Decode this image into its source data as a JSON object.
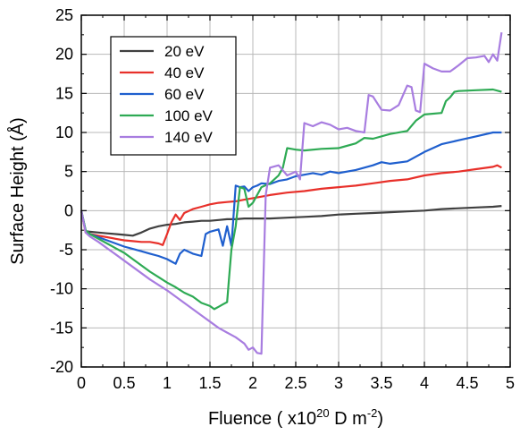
{
  "chart_data": {
    "type": "line",
    "xlabel": {
      "pre": "Fluence ( x10",
      "sup1": "20",
      "mid": " D m",
      "sup2": "-2",
      "post": ")"
    },
    "ylabel": "Surface Height (Å)",
    "xlim": [
      0,
      5
    ],
    "ylim": [
      -20,
      25
    ],
    "xticks": [
      0,
      0.5,
      1,
      1.5,
      2,
      2.5,
      3,
      3.5,
      4,
      4.5,
      5
    ],
    "xtick_labels": [
      "0",
      "0.5",
      "1",
      "1.5",
      "2",
      "2.5",
      "3",
      "3.5",
      "4",
      "4.5",
      "5"
    ],
    "yticks": [
      -20,
      -15,
      -10,
      -5,
      0,
      5,
      10,
      15,
      20,
      25
    ],
    "ytick_labels": [
      "-20",
      "-15",
      "-10",
      "-5",
      "0",
      "5",
      "10",
      "15",
      "20",
      "25"
    ],
    "grid": true,
    "legend_position": "top-left",
    "series": [
      {
        "name": "20 eV",
        "color": "#404040",
        "x": [
          0,
          0.05,
          0.1,
          0.2,
          0.3,
          0.4,
          0.5,
          0.6,
          0.7,
          0.8,
          0.9,
          1.0,
          1.1,
          1.2,
          1.3,
          1.4,
          1.5,
          1.6,
          1.7,
          1.8,
          1.9,
          2.0,
          2.2,
          2.4,
          2.6,
          2.8,
          3.0,
          3.2,
          3.4,
          3.6,
          3.8,
          4.0,
          4.2,
          4.4,
          4.6,
          4.8,
          4.9
        ],
        "y": [
          0,
          -2.6,
          -2.7,
          -2.8,
          -2.9,
          -3.0,
          -3.1,
          -3.2,
          -2.8,
          -2.3,
          -2.0,
          -1.8,
          -1.7,
          -1.5,
          -1.4,
          -1.3,
          -1.3,
          -1.2,
          -1.1,
          -1.1,
          -1.0,
          -1.0,
          -1.0,
          -0.9,
          -0.8,
          -0.7,
          -0.5,
          -0.4,
          -0.3,
          -0.2,
          -0.1,
          0.0,
          0.2,
          0.3,
          0.4,
          0.5,
          0.6
        ]
      },
      {
        "name": "40 eV",
        "color": "#e8302a",
        "x": [
          0,
          0.05,
          0.1,
          0.2,
          0.3,
          0.4,
          0.5,
          0.6,
          0.7,
          0.8,
          0.9,
          0.95,
          1.0,
          1.05,
          1.1,
          1.15,
          1.2,
          1.3,
          1.4,
          1.5,
          1.6,
          1.7,
          1.8,
          1.9,
          2.0,
          2.2,
          2.4,
          2.6,
          2.8,
          3.0,
          3.2,
          3.4,
          3.6,
          3.8,
          4.0,
          4.2,
          4.4,
          4.6,
          4.8,
          4.85,
          4.9
        ],
        "y": [
          0,
          -2.8,
          -3.0,
          -3.2,
          -3.4,
          -3.6,
          -3.8,
          -3.9,
          -4.0,
          -4.0,
          -4.2,
          -4.4,
          -3.0,
          -1.5,
          -0.5,
          -1.2,
          -0.3,
          0.2,
          0.5,
          0.8,
          1.0,
          1.1,
          1.2,
          1.4,
          1.6,
          2.0,
          2.3,
          2.5,
          2.8,
          3.0,
          3.2,
          3.5,
          3.8,
          4.0,
          4.5,
          4.8,
          5.0,
          5.3,
          5.6,
          5.8,
          5.5
        ]
      },
      {
        "name": "60 eV",
        "color": "#1f5fce",
        "x": [
          0,
          0.05,
          0.1,
          0.2,
          0.3,
          0.4,
          0.5,
          0.6,
          0.7,
          0.8,
          0.9,
          1.0,
          1.05,
          1.1,
          1.15,
          1.2,
          1.3,
          1.4,
          1.45,
          1.5,
          1.6,
          1.65,
          1.7,
          1.75,
          1.8,
          1.85,
          1.9,
          1.95,
          2.0,
          2.05,
          2.1,
          2.2,
          2.3,
          2.4,
          2.5,
          2.6,
          2.7,
          2.8,
          2.9,
          3.0,
          3.2,
          3.4,
          3.5,
          3.6,
          3.8,
          4.0,
          4.2,
          4.4,
          4.6,
          4.8,
          4.9
        ],
        "y": [
          0,
          -2.5,
          -3.0,
          -3.4,
          -3.8,
          -4.2,
          -4.6,
          -4.9,
          -5.2,
          -5.5,
          -5.8,
          -6.2,
          -6.5,
          -6.8,
          -5.5,
          -5.0,
          -5.5,
          -5.8,
          -3.0,
          -2.7,
          -2.4,
          -4.5,
          -2.0,
          -4.5,
          3.2,
          3.0,
          3.1,
          2.5,
          3.0,
          3.2,
          3.5,
          3.4,
          3.8,
          4.0,
          4.4,
          4.6,
          4.8,
          4.6,
          5.0,
          4.8,
          5.2,
          5.8,
          6.2,
          6.0,
          6.3,
          7.5,
          8.5,
          9.0,
          9.5,
          10.0,
          10.0
        ]
      },
      {
        "name": "100 eV",
        "color": "#2eaa54",
        "x": [
          0,
          0.05,
          0.1,
          0.2,
          0.3,
          0.4,
          0.5,
          0.6,
          0.7,
          0.8,
          0.9,
          1.0,
          1.1,
          1.2,
          1.3,
          1.4,
          1.5,
          1.55,
          1.6,
          1.65,
          1.7,
          1.72,
          1.75,
          1.8,
          1.85,
          1.9,
          1.95,
          2.0,
          2.1,
          2.2,
          2.3,
          2.35,
          2.4,
          2.45,
          2.5,
          2.6,
          2.8,
          3.0,
          3.2,
          3.3,
          3.4,
          3.6,
          3.8,
          3.9,
          4.0,
          4.2,
          4.25,
          4.3,
          4.35,
          4.4,
          4.6,
          4.8,
          4.9
        ],
        "y": [
          0,
          -2.5,
          -3.0,
          -3.6,
          -4.2,
          -4.8,
          -5.4,
          -6.2,
          -7.0,
          -7.8,
          -8.5,
          -9.2,
          -9.8,
          -10.5,
          -11.0,
          -11.8,
          -12.2,
          -12.6,
          -12.3,
          -12.0,
          -11.7,
          -9.0,
          -5.0,
          -2.0,
          3.0,
          2.8,
          0.5,
          1.0,
          3.0,
          3.5,
          4.5,
          5.5,
          8.0,
          7.9,
          7.8,
          7.7,
          7.9,
          8.0,
          8.6,
          9.3,
          9.2,
          9.8,
          10.2,
          11.5,
          12.3,
          12.5,
          14.0,
          14.5,
          15.2,
          15.3,
          15.4,
          15.5,
          15.2
        ]
      },
      {
        "name": "140 eV",
        "color": "#a87de0",
        "x": [
          0,
          0.05,
          0.1,
          0.2,
          0.3,
          0.4,
          0.5,
          0.6,
          0.7,
          0.8,
          0.9,
          1.0,
          1.1,
          1.2,
          1.3,
          1.4,
          1.5,
          1.6,
          1.7,
          1.8,
          1.9,
          1.95,
          2.0,
          2.05,
          2.1,
          2.15,
          2.2,
          2.3,
          2.4,
          2.5,
          2.55,
          2.6,
          2.7,
          2.8,
          2.9,
          3.0,
          3.1,
          3.2,
          3.3,
          3.35,
          3.4,
          3.5,
          3.6,
          3.7,
          3.8,
          3.85,
          3.9,
          3.95,
          4.0,
          4.1,
          4.2,
          4.3,
          4.4,
          4.5,
          4.6,
          4.7,
          4.75,
          4.8,
          4.85,
          4.9
        ],
        "y": [
          0,
          -2.8,
          -3.3,
          -4.0,
          -4.8,
          -5.6,
          -6.4,
          -7.2,
          -8.0,
          -8.8,
          -9.5,
          -10.2,
          -11.0,
          -11.8,
          -12.6,
          -13.4,
          -14.2,
          -15.0,
          -15.6,
          -16.2,
          -17.0,
          -17.8,
          -17.5,
          -18.2,
          -18.3,
          2.0,
          5.5,
          5.8,
          4.5,
          5.0,
          4.0,
          11.2,
          10.8,
          11.3,
          11.0,
          10.4,
          10.6,
          10.2,
          10.0,
          14.8,
          14.6,
          12.9,
          12.8,
          13.5,
          16.0,
          15.8,
          12.8,
          12.6,
          18.8,
          18.2,
          17.8,
          17.8,
          18.6,
          19.5,
          19.6,
          19.8,
          19.0,
          20.0,
          19.2,
          22.8
        ]
      }
    ]
  }
}
